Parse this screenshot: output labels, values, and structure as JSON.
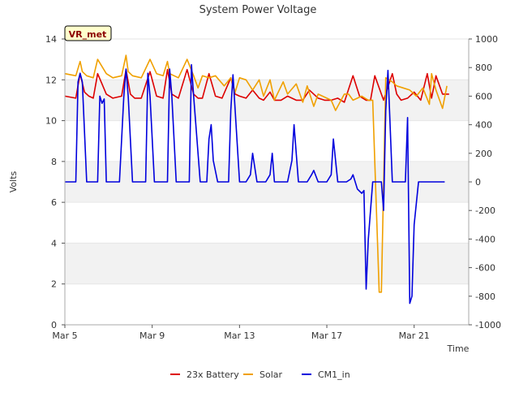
{
  "chart_data": {
    "type": "line",
    "title": "System Power Voltage",
    "xlabel": "Time",
    "ylabel": "Volts",
    "x_ticks": [
      "Mar 5",
      "Mar 9",
      "Mar 13",
      "Mar 17",
      "Mar 21"
    ],
    "x_tick_days": [
      5,
      9,
      13,
      17,
      21
    ],
    "xlim_days": [
      5,
      23.5
    ],
    "ylim_left": [
      0,
      14
    ],
    "yticks_left": [
      0,
      2,
      4,
      6,
      8,
      10,
      12,
      14
    ],
    "ylim_right": [
      -1000,
      1000
    ],
    "yticks_right": [
      -1000,
      -800,
      -600,
      -400,
      -200,
      0,
      200,
      400,
      600,
      800,
      1000
    ],
    "shaded_bands_left": [
      [
        2,
        4
      ],
      [
        6,
        8
      ],
      [
        10,
        12
      ]
    ],
    "badge": "VR_met",
    "legend_position": "bottom",
    "colors": {
      "battery": "#dd0000",
      "solar": "#f0a000",
      "cm1": "#0000dd",
      "band": "#f2f2f2",
      "badge_fill": "#ffffcc",
      "badge_text": "#8b0000"
    },
    "series": [
      {
        "name": "23x Battery",
        "axis": "left",
        "color": "#dd0000",
        "x": [
          5.0,
          5.5,
          5.7,
          5.9,
          6.1,
          6.3,
          6.5,
          6.9,
          7.2,
          7.6,
          7.8,
          8.0,
          8.2,
          8.5,
          8.9,
          9.2,
          9.5,
          9.7,
          9.9,
          10.2,
          10.6,
          10.9,
          11.1,
          11.3,
          11.6,
          11.9,
          12.2,
          12.6,
          12.8,
          13.0,
          13.3,
          13.6,
          13.9,
          14.1,
          14.4,
          14.6,
          14.9,
          15.2,
          15.6,
          15.9,
          16.2,
          16.6,
          16.9,
          17.2,
          17.5,
          17.8,
          18.2,
          18.5,
          18.8,
          19.0,
          19.2,
          19.6,
          20.0,
          20.2,
          20.4,
          20.7,
          21.0,
          21.3,
          21.6,
          21.8,
          22.0,
          22.3,
          22.6
        ],
        "values": [
          11.2,
          11.1,
          12.3,
          11.4,
          11.2,
          11.1,
          12.3,
          11.3,
          11.1,
          11.2,
          12.5,
          11.3,
          11.1,
          11.1,
          12.4,
          11.2,
          11.1,
          12.5,
          11.3,
          11.1,
          12.5,
          11.3,
          11.1,
          11.1,
          12.3,
          11.2,
          11.1,
          12.1,
          11.3,
          11.2,
          11.1,
          11.5,
          11.1,
          11.0,
          11.4,
          11.0,
          11.0,
          11.2,
          11.0,
          11.0,
          11.5,
          11.1,
          11.0,
          11.0,
          11.1,
          10.9,
          12.2,
          11.2,
          11.0,
          11.0,
          12.2,
          11.0,
          12.3,
          11.3,
          11.0,
          11.1,
          11.4,
          11.0,
          12.3,
          11.1,
          12.2,
          11.3,
          11.3
        ]
      },
      {
        "name": "Solar",
        "axis": "left",
        "color": "#f0a000",
        "x": [
          5.0,
          5.5,
          5.7,
          5.8,
          6.0,
          6.3,
          6.5,
          6.9,
          7.2,
          7.6,
          7.8,
          7.9,
          8.1,
          8.5,
          8.9,
          9.2,
          9.5,
          9.7,
          9.8,
          10.2,
          10.6,
          10.9,
          11.1,
          11.3,
          11.6,
          11.9,
          12.3,
          12.6,
          12.8,
          13.0,
          13.3,
          13.6,
          13.9,
          14.1,
          14.4,
          14.6,
          15.0,
          15.2,
          15.6,
          15.9,
          16.1,
          16.4,
          16.6,
          17.0,
          17.2,
          17.4,
          17.8,
          18.0,
          18.2,
          18.6,
          18.9,
          19.1,
          19.4,
          19.5,
          19.7,
          20.0,
          20.2,
          20.5,
          20.8,
          21.1,
          21.4,
          21.7,
          21.8,
          22.0,
          22.3,
          22.5
        ],
        "values": [
          12.3,
          12.2,
          12.9,
          12.4,
          12.2,
          12.1,
          13.0,
          12.3,
          12.1,
          12.2,
          13.2,
          12.4,
          12.2,
          12.1,
          13.0,
          12.3,
          12.2,
          12.9,
          12.3,
          12.1,
          13.0,
          12.2,
          11.6,
          12.2,
          12.1,
          12.2,
          11.7,
          12.1,
          11.4,
          12.1,
          12.0,
          11.5,
          12.0,
          11.2,
          12.0,
          11.0,
          11.9,
          11.3,
          11.8,
          10.9,
          11.7,
          10.7,
          11.3,
          11.1,
          11.0,
          10.5,
          11.3,
          11.3,
          11.0,
          11.2,
          11.0,
          11.0,
          1.6,
          1.6,
          12.1,
          11.9,
          11.7,
          11.6,
          11.5,
          11.2,
          11.6,
          10.8,
          12.3,
          11.5,
          10.6,
          11.7
        ]
      },
      {
        "name": "CM1_in",
        "axis": "right",
        "color": "#0000dd",
        "x": [
          5.0,
          5.2,
          5.5,
          5.6,
          5.7,
          5.8,
          6.0,
          6.2,
          6.5,
          6.6,
          6.7,
          6.8,
          6.9,
          7.0,
          7.2,
          7.5,
          7.7,
          7.8,
          7.9,
          8.1,
          8.4,
          8.7,
          8.8,
          8.9,
          9.1,
          9.4,
          9.7,
          9.8,
          9.9,
          10.1,
          10.4,
          10.7,
          10.8,
          10.9,
          11.2,
          11.5,
          11.6,
          11.7,
          11.8,
          12.0,
          12.3,
          12.5,
          12.6,
          12.7,
          13.0,
          13.3,
          13.5,
          13.6,
          13.8,
          14.2,
          14.4,
          14.5,
          14.6,
          14.8,
          15.2,
          15.4,
          15.5,
          15.7,
          16.1,
          16.3,
          16.4,
          16.6,
          17.0,
          17.2,
          17.3,
          17.5,
          17.9,
          18.1,
          18.2,
          18.4,
          18.6,
          18.7,
          18.8,
          18.9,
          19.0,
          19.1,
          19.3,
          19.5,
          19.6,
          19.7,
          19.8,
          20.0,
          20.3,
          20.5,
          20.6,
          20.7,
          20.8,
          20.9,
          21.0,
          21.2,
          21.5,
          21.6,
          21.7,
          21.8,
          21.9,
          22.0,
          22.2,
          22.4
        ],
        "values": [
          0,
          0,
          0,
          700,
          760,
          700,
          0,
          0,
          0,
          600,
          550,
          580,
          0,
          0,
          0,
          0,
          600,
          790,
          600,
          0,
          0,
          0,
          760,
          600,
          0,
          0,
          0,
          790,
          600,
          0,
          0,
          0,
          820,
          600,
          0,
          0,
          300,
          400,
          150,
          0,
          0,
          0,
          500,
          750,
          0,
          0,
          50,
          200,
          0,
          0,
          50,
          200,
          0,
          0,
          0,
          150,
          400,
          0,
          0,
          50,
          80,
          0,
          0,
          50,
          300,
          0,
          0,
          20,
          50,
          -50,
          -80,
          -60,
          -750,
          -400,
          -200,
          0,
          0,
          0,
          -200,
          500,
          780,
          0,
          0,
          0,
          0,
          450,
          -850,
          -800,
          -300,
          0,
          0,
          0,
          0,
          0,
          0,
          0,
          0,
          0
        ]
      }
    ]
  }
}
